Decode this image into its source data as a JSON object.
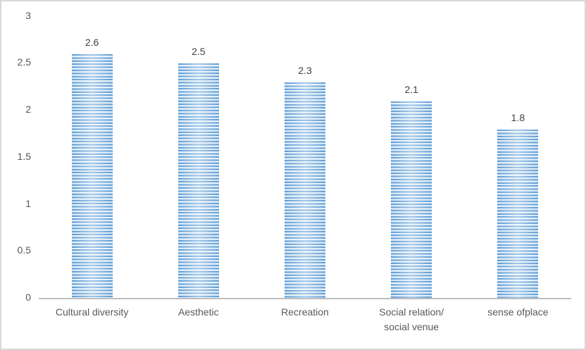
{
  "chart_data": {
    "type": "bar",
    "categories": [
      "Cultural diversity",
      "Aesthetic",
      "Recreation",
      "Social relation/\nsocial venue",
      "sense ofplace"
    ],
    "values": [
      2.6,
      2.5,
      2.3,
      2.1,
      1.8
    ],
    "data_labels": [
      "2.6",
      "2.5",
      "2.3",
      "2.1",
      "1.8"
    ],
    "title": "",
    "xlabel": "",
    "ylabel": "",
    "ylim": [
      0,
      3
    ],
    "ytick_labels": [
      "0",
      "0.5",
      "1",
      "1.5",
      "2",
      "2.5",
      "3"
    ],
    "yticks": [
      0,
      0.5,
      1,
      1.5,
      2,
      2.5,
      3
    ],
    "grid": false,
    "legend": false,
    "colors": {
      "bar_stripe_dark": "#5b9bd5",
      "bar_stripe_light": "#e7f1fa",
      "axis_line": "#bfbfbf",
      "tick_text": "#595959",
      "data_label_text": "#3f3f3f",
      "frame_border": "#d8d8da",
      "background": "#ffffff"
    },
    "bar_style": "horizontal-stripes"
  }
}
